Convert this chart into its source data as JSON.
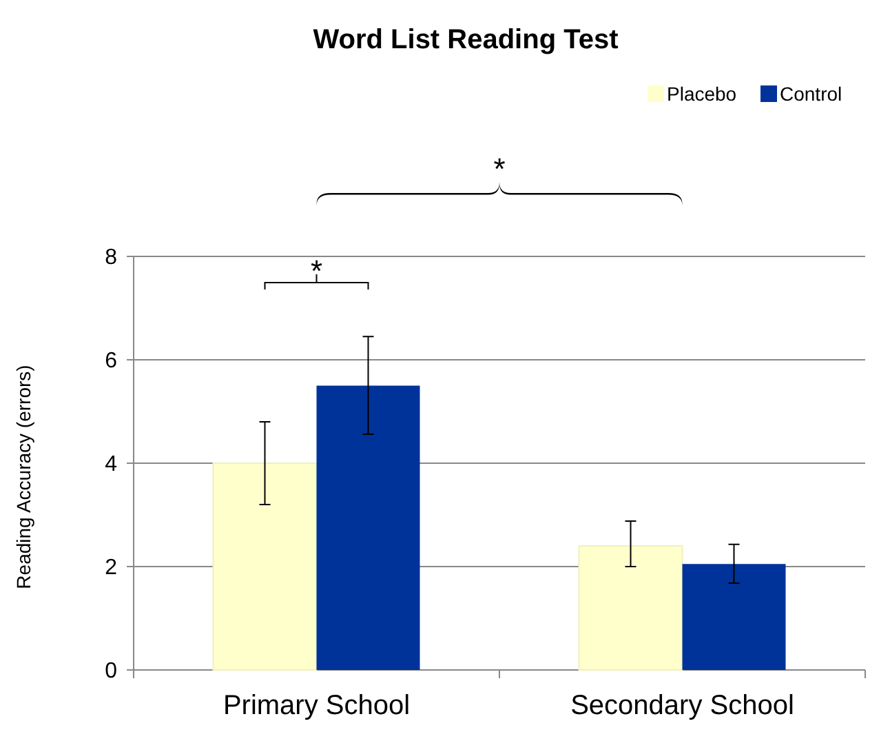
{
  "chart_data": {
    "type": "bar",
    "title": "Word List Reading Test",
    "ylabel": "Reading Accuracy  (errors)",
    "categories": [
      "Primary School",
      "Secondary School"
    ],
    "series": [
      {
        "name": "Placebo",
        "color": "#ffffcc",
        "values": [
          4.0,
          2.4
        ],
        "errors": [
          [
            3.2,
            4.8
          ],
          [
            2.0,
            2.88
          ]
        ]
      },
      {
        "name": "Control",
        "color": "#003399",
        "values": [
          5.5,
          2.05
        ],
        "errors": [
          [
            4.56,
            6.45
          ],
          [
            1.68,
            2.43
          ]
        ]
      }
    ],
    "ylim": [
      0,
      8
    ],
    "yticks": [
      0,
      2,
      4,
      6,
      8
    ],
    "grid": "y",
    "legend": "top right",
    "annotations": [
      "*",
      "*"
    ]
  }
}
